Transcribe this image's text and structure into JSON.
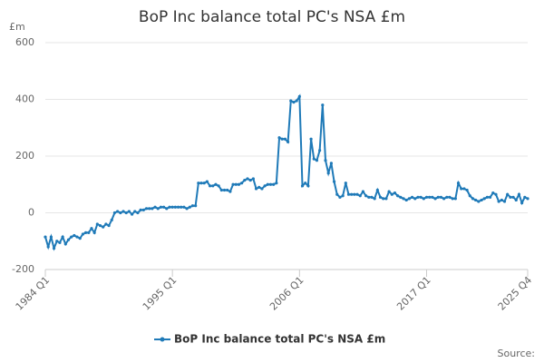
{
  "chart_data": {
    "type": "line",
    "title": "BoP Inc balance total PC's NSA £m",
    "y_unit": "£m",
    "source": "Source:",
    "categories": [
      "1984 Q1",
      null,
      null,
      null,
      null,
      null,
      null,
      null,
      null,
      null,
      null,
      null,
      null,
      null,
      null,
      null,
      null,
      null,
      null,
      null,
      null,
      null,
      null,
      null,
      null,
      null,
      null,
      null,
      null,
      null,
      null,
      null,
      null,
      null,
      null,
      null,
      null,
      null,
      null,
      null,
      null,
      null,
      null,
      null,
      "1995 Q1",
      null,
      null,
      null,
      null,
      null,
      null,
      null,
      null,
      null,
      null,
      null,
      null,
      null,
      null,
      null,
      null,
      null,
      null,
      null,
      null,
      null,
      null,
      null,
      null,
      null,
      null,
      null,
      null,
      null,
      null,
      null,
      null,
      null,
      null,
      null,
      null,
      null,
      null,
      null,
      null,
      null,
      null,
      null,
      "2006 Q1",
      null,
      null,
      null,
      null,
      null,
      null,
      null,
      null,
      null,
      null,
      null,
      null,
      null,
      null,
      null,
      null,
      null,
      null,
      null,
      null,
      null,
      null,
      null,
      null,
      null,
      null,
      null,
      null,
      null,
      null,
      null,
      null,
      null,
      null,
      null,
      null,
      null,
      null,
      null,
      null,
      null,
      null,
      null,
      "2017 Q1",
      null,
      null,
      null,
      null,
      null,
      null,
      null,
      null,
      null,
      null,
      null,
      null,
      null,
      null,
      null,
      null,
      null,
      null,
      null,
      null,
      null,
      null,
      null,
      null,
      null,
      null,
      null,
      null,
      null,
      null,
      null,
      null,
      null,
      null,
      "2025 Q4"
    ],
    "series": [
      {
        "name": "BoP Inc balance total PC's NSA £m",
        "color": "#1f7ab8",
        "values": [
          -85,
          -120,
          -85,
          -125,
          -100,
          -105,
          -85,
          -110,
          -95,
          -85,
          -80,
          -85,
          -90,
          -75,
          -70,
          -70,
          -55,
          -70,
          -40,
          -45,
          -50,
          -40,
          -45,
          -25,
          0,
          5,
          0,
          5,
          0,
          5,
          -5,
          5,
          0,
          10,
          10,
          15,
          15,
          15,
          20,
          15,
          20,
          20,
          15,
          20,
          20,
          20,
          20,
          20,
          20,
          15,
          20,
          25,
          25,
          105,
          105,
          105,
          110,
          95,
          95,
          100,
          95,
          80,
          80,
          80,
          75,
          100,
          100,
          100,
          105,
          115,
          120,
          115,
          120,
          85,
          90,
          85,
          95,
          100,
          100,
          100,
          105,
          265,
          260,
          260,
          250,
          395,
          390,
          395,
          410,
          95,
          105,
          95,
          260,
          190,
          185,
          220,
          380,
          185,
          140,
          175,
          110,
          65,
          55,
          60,
          105,
          65,
          65,
          65,
          65,
          60,
          75,
          60,
          55,
          55,
          50,
          80,
          55,
          50,
          50,
          75,
          65,
          70,
          60,
          55,
          50,
          45,
          50,
          55,
          50,
          55,
          55,
          50,
          55,
          55,
          55,
          50,
          55,
          55,
          50,
          55,
          55,
          50,
          50,
          105,
          85,
          85,
          80,
          60,
          50,
          45,
          40,
          45,
          50,
          55,
          55,
          70,
          65,
          40,
          45,
          40,
          65,
          55,
          55,
          45,
          65,
          35,
          55,
          50
        ]
      }
    ],
    "ylim": [
      -200,
      600
    ],
    "yticks": [
      -200,
      0,
      200,
      400,
      600
    ],
    "grid": true
  }
}
